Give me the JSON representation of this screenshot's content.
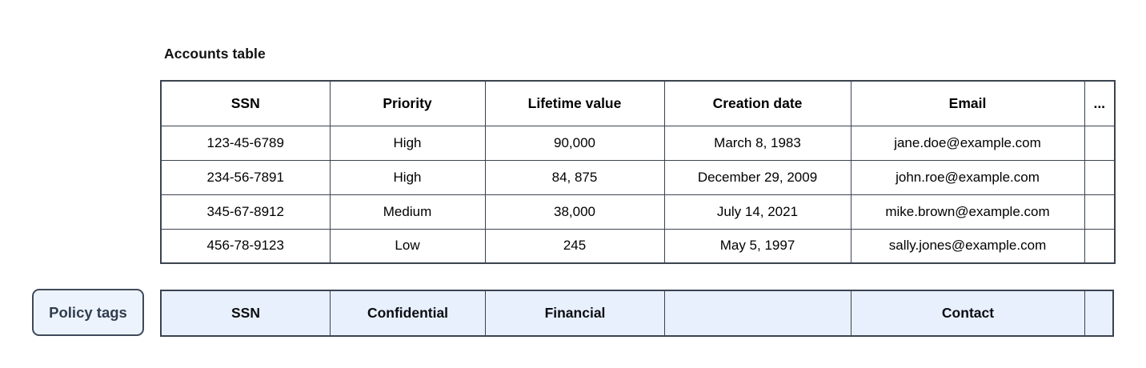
{
  "title": "Accounts table",
  "table": {
    "columns": [
      "SSN",
      "Priority",
      "Lifetime value",
      "Creation date",
      "Email",
      "..."
    ],
    "rows": [
      [
        "123-45-6789",
        "High",
        "90,000",
        "March 8, 1983",
        "jane.doe@example.com",
        ""
      ],
      [
        "234-56-7891",
        "High",
        "84, 875",
        "December 29, 2009",
        "john.roe@example.com",
        ""
      ],
      [
        "345-67-8912",
        "Medium",
        "38,000",
        "July 14, 2021",
        "mike.brown@example.com",
        ""
      ],
      [
        "456-78-9123",
        "Low",
        "245",
        "May 5, 1997",
        "sally.jones@example.com",
        ""
      ]
    ]
  },
  "policy": {
    "label": "Policy tags",
    "tags": [
      "SSN",
      "Confidential",
      "Financial",
      "",
      "Contact",
      ""
    ]
  },
  "colors": {
    "border": "#3b4350",
    "policy_cell_bg": "#e8f0fe",
    "policy_chip_bg": "#ecf3fd",
    "policy_chip_text": "#313d4d"
  }
}
